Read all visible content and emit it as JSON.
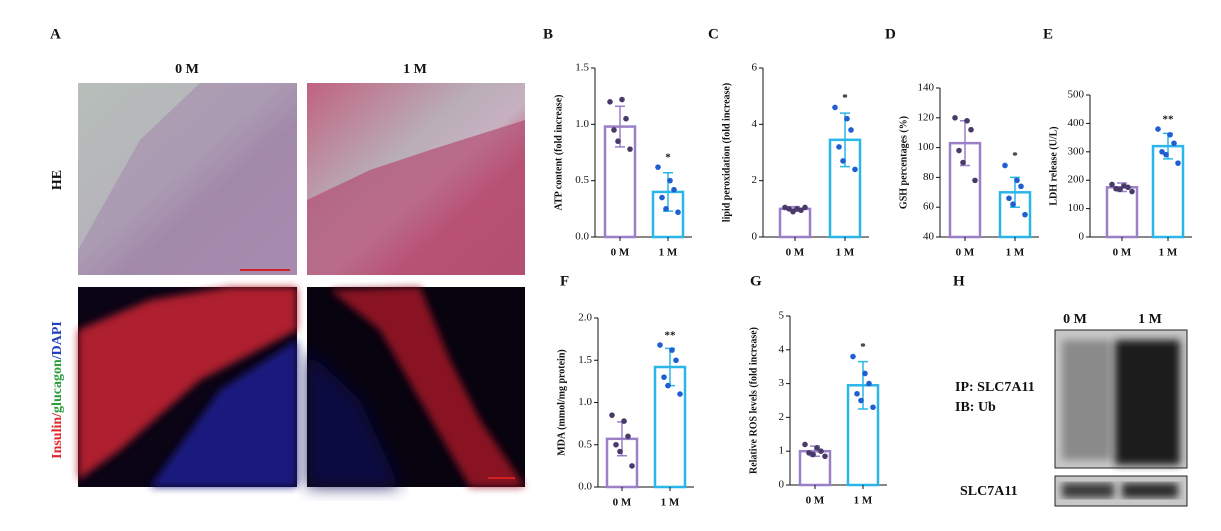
{
  "panel_a": {
    "label": "A",
    "columns": [
      "0 M",
      "1 M"
    ],
    "row_top": "HE",
    "row_bottom": [
      "Insulin/",
      "glucagon",
      "/DAPI"
    ]
  },
  "panel_h": {
    "label": "H",
    "columns": [
      "0 M",
      "1 M"
    ],
    "ip": "IP: SLC7A11",
    "ib": "IB: Ub",
    "loading": "SLC7A11"
  },
  "chart_data": [
    {
      "type": "bar",
      "panel": "B",
      "ylabel": "ATP content (fold increase)",
      "categories": [
        "0 M",
        "1 M"
      ],
      "values": [
        0.98,
        0.4
      ],
      "errors": [
        0.18,
        0.17
      ],
      "points": [
        [
          1.2,
          1.22,
          1.05,
          0.95,
          0.85,
          0.78
        ],
        [
          0.62,
          0.5,
          0.42,
          0.35,
          0.25,
          0.22
        ]
      ],
      "significance": "*",
      "colors": [
        "#9b80c8",
        "#2bb6ea"
      ],
      "point_colors": [
        "#4a3a6a",
        "#1f5fd1"
      ],
      "ylim": [
        0,
        1.5
      ],
      "yticks": [
        {
          "value": 0,
          "label": "0.0"
        },
        0.5,
        {
          "value": 1,
          "label": "1.0"
        },
        1.5
      ]
    },
    {
      "type": "bar",
      "panel": "C",
      "ylabel": "lipid peroxidation (fold increase)",
      "categories": [
        "0 M",
        "1 M"
      ],
      "values": [
        1.0,
        3.45
      ],
      "errors": [
        0.08,
        0.95
      ],
      "points": [
        [
          1.05,
          1.0,
          0.95,
          1.0,
          0.9,
          1.05
        ],
        [
          4.6,
          4.2,
          3.8,
          3.2,
          2.7,
          2.4
        ]
      ],
      "significance": "*",
      "colors": [
        "#9b80c8",
        "#2bb6ea"
      ],
      "point_colors": [
        "#4a3a6a",
        "#1f5fd1"
      ],
      "ylim": [
        0,
        6
      ],
      "yticks": [
        0,
        2,
        4,
        6
      ]
    },
    {
      "type": "bar",
      "panel": "D",
      "ylabel": "GSH percentages (%)",
      "categories": [
        "0 M",
        "1 M"
      ],
      "values": [
        103,
        70
      ],
      "errors": [
        15,
        10
      ],
      "points": [
        [
          120,
          118,
          112,
          98,
          90,
          78
        ],
        [
          88,
          78,
          74,
          66,
          62,
          55
        ]
      ],
      "significance": "*",
      "colors": [
        "#9b80c8",
        "#2bb6ea"
      ],
      "point_colors": [
        "#4a3a6a",
        "#1f5fd1"
      ],
      "ylim": [
        40,
        140
      ],
      "yticks": [
        40,
        60,
        80,
        100,
        120,
        140
      ]
    },
    {
      "type": "bar",
      "panel": "E",
      "ylabel": "LDH release (U/L)",
      "categories": [
        "0 M",
        "1 M"
      ],
      "values": [
        175,
        320
      ],
      "errors": [
        15,
        45
      ],
      "points": [
        [
          185,
          180,
          175,
          170,
          168,
          160
        ],
        [
          380,
          360,
          330,
          300,
          290,
          260
        ]
      ],
      "significance": "**",
      "colors": [
        "#9b80c8",
        "#2bb6ea"
      ],
      "point_colors": [
        "#4a3a6a",
        "#1f5fd1"
      ],
      "ylim": [
        0,
        500
      ],
      "yticks": [
        0,
        100,
        200,
        300,
        400,
        500
      ]
    },
    {
      "type": "bar",
      "panel": "F",
      "ylabel": "MDA (mmol/mg protein)",
      "categories": [
        "0 M",
        "1 M"
      ],
      "values": [
        0.57,
        1.42
      ],
      "errors": [
        0.2,
        0.22
      ],
      "points": [
        [
          0.85,
          0.78,
          0.6,
          0.5,
          0.42,
          0.25
        ],
        [
          1.68,
          1.62,
          1.5,
          1.3,
          1.2,
          1.1
        ]
      ],
      "significance": "**",
      "colors": [
        "#9b80c8",
        "#2bb6ea"
      ],
      "point_colors": [
        "#4a3a6a",
        "#1f5fd1"
      ],
      "ylim": [
        0,
        2
      ],
      "yticks": [
        {
          "value": 0,
          "label": "0.0"
        },
        0.5,
        {
          "value": 1,
          "label": "1.0"
        },
        1.5,
        {
          "value": 2,
          "label": "2.0"
        }
      ]
    },
    {
      "type": "bar",
      "panel": "G",
      "ylabel": "Relative ROS levels (fold increase)",
      "categories": [
        "0 M",
        "1 M"
      ],
      "values": [
        1.0,
        2.95
      ],
      "errors": [
        0.15,
        0.7
      ],
      "points": [
        [
          1.2,
          1.1,
          1.0,
          0.95,
          0.9,
          0.85
        ],
        [
          3.8,
          3.3,
          3.0,
          2.7,
          2.5,
          2.3
        ]
      ],
      "significance": "*",
      "colors": [
        "#9b80c8",
        "#2bb6ea"
      ],
      "point_colors": [
        "#4a3a6a",
        "#1f5fd1"
      ],
      "ylim": [
        0,
        5
      ],
      "yticks": [
        0,
        1,
        2,
        3,
        4,
        5
      ]
    }
  ]
}
